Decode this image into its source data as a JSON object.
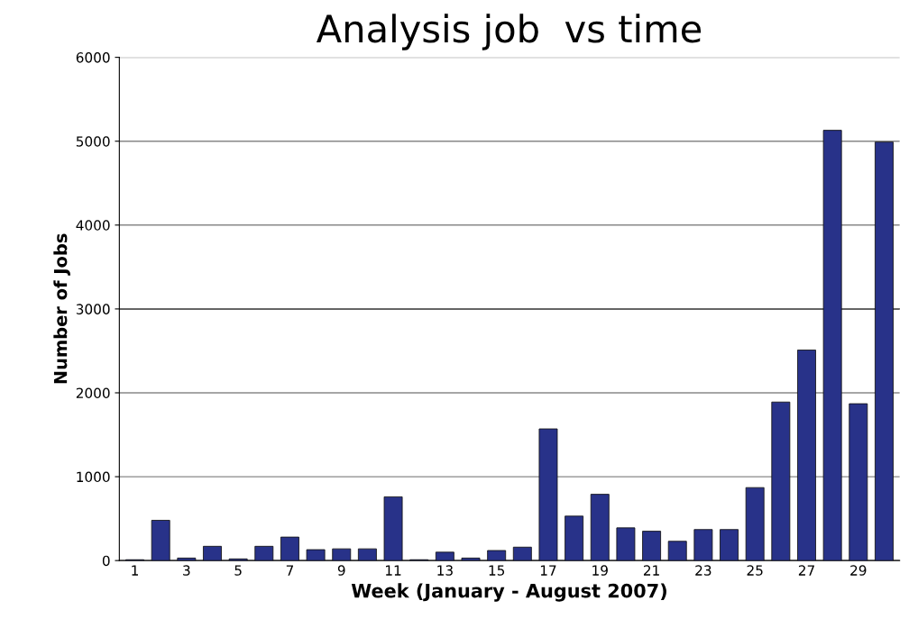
{
  "chart_data": {
    "type": "bar",
    "title": "Analysis job  vs time",
    "xlabel": "Week (January - August 2007)",
    "ylabel": "Number of Jobs",
    "categories": [
      "1",
      null,
      "3",
      null,
      "5",
      null,
      "7",
      null,
      "9",
      null,
      "11",
      null,
      "13",
      null,
      "15",
      null,
      "17",
      null,
      "19",
      null,
      "21",
      null,
      "23",
      null,
      "25",
      null,
      "27",
      null,
      "29",
      null
    ],
    "values": [
      10,
      480,
      30,
      170,
      20,
      170,
      280,
      130,
      140,
      140,
      760,
      10,
      100,
      30,
      120,
      160,
      1570,
      530,
      790,
      390,
      350,
      230,
      370,
      370,
      870,
      1890,
      2510,
      5130,
      1870,
      4990
    ],
    "color": "#283289",
    "ylim": [
      0,
      6000
    ],
    "yticks": [
      0,
      1000,
      2000,
      3000,
      4000,
      5000,
      6000
    ],
    "grid": "y",
    "ref_lines": [
      {
        "axis": "y",
        "value": 3000,
        "color": "#000000"
      }
    ]
  }
}
